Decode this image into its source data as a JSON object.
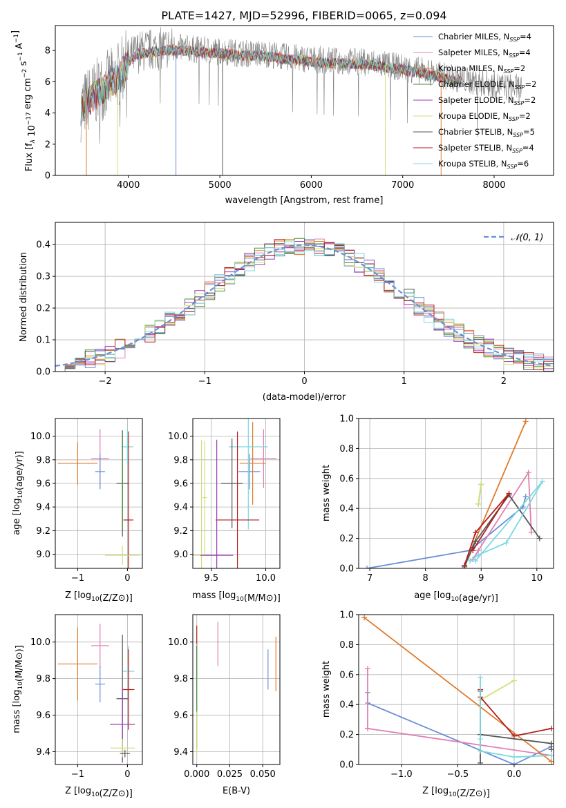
{
  "figure": {
    "title": "PLATE=1427, MJD=52996, FIBERID=0065, z=0.094"
  },
  "colors": {
    "chabrier_miles": "#6a8ed8",
    "salpeter_miles": "#e07fb0",
    "kroupa_miles": "#e07a2a",
    "chabrier_elodie": "#4a8a3a",
    "salpeter_elodie": "#9a3ab8",
    "kroupa_elodie": "#cfe07a",
    "chabrier_stelib": "#555555",
    "salpeter_stelib": "#b01e1e",
    "kroupa_stelib": "#7ad8e0",
    "gaussian": "#6a8ed8",
    "grid": "#b0b0b0"
  },
  "legend_entries": [
    {
      "text": "Chabrier MILES, N",
      "sub": "SSP",
      "suffix": "=4",
      "color_key": "chabrier_miles"
    },
    {
      "text": "Salpeter MILES, N",
      "sub": "SSP",
      "suffix": "=4",
      "color_key": "salpeter_miles"
    },
    {
      "text": "Kroupa MILES, N",
      "sub": "SSP",
      "suffix": "=2",
      "color_key": "kroupa_miles"
    },
    {
      "text": "Chabrier ELODIE, N",
      "sub": "SSP",
      "suffix": "=2",
      "color_key": "chabrier_elodie"
    },
    {
      "text": "Salpeter ELODIE, N",
      "sub": "SSP",
      "suffix": "=2",
      "color_key": "salpeter_elodie"
    },
    {
      "text": "Kroupa ELODIE, N",
      "sub": "SSP",
      "suffix": "=2",
      "color_key": "kroupa_elodie"
    },
    {
      "text": "Chabrier STELIB, N",
      "sub": "SSP",
      "suffix": "=5",
      "color_key": "chabrier_stelib"
    },
    {
      "text": "Salpeter STELIB, N",
      "sub": "SSP",
      "suffix": "=4",
      "color_key": "salpeter_stelib"
    },
    {
      "text": "Kroupa STELIB, N",
      "sub": "SSP",
      "suffix": "=6",
      "color_key": "kroupa_stelib"
    }
  ],
  "chart_data": [
    {
      "id": "spectrum",
      "type": "line",
      "xlabel": "wavelength [Angstrom, rest frame]",
      "ylabel": "Flux [f_λ 10^-17 erg cm^-2 s^-1 A^-1]",
      "xlim": [
        3200,
        8650
      ],
      "ylim": [
        0,
        9.6
      ],
      "xticks": [
        4000,
        5000,
        6000,
        7000,
        8000
      ],
      "yticks": [
        0,
        2,
        4,
        6,
        8
      ],
      "data_x": [
        3480,
        3550,
        3700,
        3850,
        3950,
        4000,
        4100,
        4300,
        4500,
        4700,
        4900,
        5100,
        5300,
        5500,
        5700,
        5900,
        6100,
        6300,
        6500,
        6700,
        6900,
        7100,
        7300,
        7500,
        7700,
        7900,
        8100,
        8300
      ],
      "data_y": [
        4.3,
        4.8,
        5.6,
        6.2,
        6.9,
        7.4,
        7.9,
        8.1,
        8.2,
        8.1,
        8.0,
        7.9,
        7.8,
        7.8,
        7.6,
        7.5,
        7.4,
        7.3,
        7.3,
        7.2,
        7.0,
        6.8,
        6.6,
        6.3,
        6.1,
        5.9,
        5.7,
        5.6
      ],
      "model_end_x": 7650,
      "grid": false,
      "legend": "upper right"
    },
    {
      "id": "residuals",
      "type": "histogram",
      "xlabel": "(data-model)/error",
      "ylabel": "Normed distribution",
      "xlim": [
        -2.5,
        2.5
      ],
      "ylim": [
        0,
        0.47
      ],
      "xticks": [
        -2,
        -1,
        0,
        1,
        2
      ],
      "yticks": [
        0.0,
        0.1,
        0.2,
        0.3,
        0.4
      ],
      "bin_width": 0.1,
      "reference_label": "N(0,1)",
      "grid": true,
      "legend": "upper right"
    },
    {
      "id": "age-vs-Z",
      "type": "errorbar",
      "xlabel": "Z [log10(Z/Z⊙)]",
      "ylabel": "age [log10(age/yr)]",
      "xlim": [
        -1.45,
        0.3
      ],
      "ylim": [
        8.88,
        10.15
      ],
      "xticks": [
        -1,
        0
      ],
      "yticks": [
        9.0,
        9.2,
        9.4,
        9.6,
        9.8,
        10.0
      ],
      "points": [
        {
          "color_key": "kroupa_miles",
          "x": -1.0,
          "xerr": 0.4,
          "y": 9.77,
          "yerr": 0.18
        },
        {
          "color_key": "salpeter_miles",
          "x": -0.55,
          "xerr": 0.18,
          "y": 9.81,
          "yerr": 0.25
        },
        {
          "color_key": "chabrier_miles",
          "x": -0.55,
          "xerr": 0.1,
          "y": 9.7,
          "yerr": 0.15
        },
        {
          "color_key": "kroupa_stelib",
          "x": 0.0,
          "xerr": 0.12,
          "y": 9.91,
          "yerr": 0.15
        },
        {
          "color_key": "chabrier_stelib",
          "x": -0.1,
          "xerr": 0.12,
          "y": 9.6,
          "yerr": 0.45
        },
        {
          "color_key": "salpeter_stelib",
          "x": 0.02,
          "xerr": 0.1,
          "y": 9.29,
          "yerr": 0.75
        },
        {
          "color_key": "kroupa_elodie",
          "x": -0.1,
          "xerr": 0.35,
          "y": 8.99,
          "yerr": 0.08
        },
        {
          "color_key": "chabrier_elodie",
          "x": -0.1,
          "xerr": 0.05,
          "y": 9.6,
          "yerr": 0.4
        }
      ],
      "grid": true
    },
    {
      "id": "age-vs-mass",
      "type": "errorbar",
      "xlabel": "mass [log10(M/M⊙)]",
      "ylabel": "",
      "xlim": [
        9.33,
        10.13
      ],
      "ylim": [
        8.88,
        10.15
      ],
      "xticks": [
        9.5,
        10.0
      ],
      "yticks": [
        9.0,
        9.2,
        9.4,
        9.6,
        9.8,
        10.0
      ],
      "points": [
        {
          "color_key": "salpeter_miles",
          "x": 9.98,
          "xerr": 0.12,
          "y": 9.81,
          "yerr": 0.25
        },
        {
          "color_key": "kroupa_miles",
          "x": 9.88,
          "xerr": 0.12,
          "y": 9.77,
          "yerr": 0.35
        },
        {
          "color_key": "chabrier_miles",
          "x": 9.85,
          "xerr": 0.1,
          "y": 9.7,
          "yerr": 0.15
        },
        {
          "color_key": "kroupa_stelib",
          "x": 9.84,
          "xerr": 0.18,
          "y": 9.91,
          "yerr": 0.7
        },
        {
          "color_key": "chabrier_stelib",
          "x": 9.69,
          "xerr": 0.1,
          "y": 9.6,
          "yerr": 0.38
        },
        {
          "color_key": "salpeter_stelib",
          "x": 9.74,
          "xerr": 0.2,
          "y": 9.29,
          "yerr": 0.75
        },
        {
          "color_key": "kroupa_elodie",
          "x": 9.41,
          "xerr": 0.15,
          "y": 8.99,
          "yerr": 0.98
        },
        {
          "color_key": "salpeter_elodie",
          "x": 9.55,
          "xerr": 0.15,
          "y": 8.99,
          "yerr": 0.98
        },
        {
          "color_key": "kroupa_elodie",
          "x": 9.44,
          "xerr": 0.02,
          "y": 9.48,
          "yerr": 0.48
        }
      ],
      "grid": true
    },
    {
      "id": "weight-vs-age",
      "type": "line",
      "xlabel": "age [log10(age/yr)]",
      "ylabel": "mass weight",
      "xlim": [
        6.8,
        10.3
      ],
      "ylim": [
        0,
        1
      ],
      "xticks": [
        7,
        8,
        9,
        10
      ],
      "yticks": [
        0.0,
        0.2,
        0.4,
        0.6,
        0.8,
        1.0
      ],
      "series": [
        {
          "color_key": "chabrier_miles",
          "x": [
            6.95,
            8.8,
            9.75,
            9.8
          ],
          "y": [
            0.0,
            0.12,
            0.41,
            0.48
          ]
        },
        {
          "color_key": "salpeter_miles",
          "x": [
            8.85,
            8.95,
            9.85,
            9.9
          ],
          "y": [
            0.06,
            0.12,
            0.64,
            0.24
          ]
        },
        {
          "color_key": "kroupa_miles",
          "x": [
            8.7,
            9.8
          ],
          "y": [
            0.02,
            0.98
          ]
        },
        {
          "color_key": "chabrier_elodie",
          "x": [
            8.95,
            9.0
          ],
          "y": [
            0.43,
            0.56
          ]
        },
        {
          "color_key": "kroupa_elodie",
          "x": [
            8.95,
            9.0
          ],
          "y": [
            0.43,
            0.56
          ]
        },
        {
          "color_key": "chabrier_stelib",
          "x": [
            8.7,
            8.85,
            8.9,
            9.5,
            10.05
          ],
          "y": [
            0.01,
            0.14,
            0.18,
            0.49,
            0.2
          ]
        },
        {
          "color_key": "salpeter_stelib",
          "x": [
            8.7,
            8.9,
            9.5,
            8.85
          ],
          "y": [
            0.02,
            0.24,
            0.5,
            0.12
          ]
        },
        {
          "color_key": "kroupa_stelib",
          "x": [
            8.8,
            8.95,
            9.45,
            10.1,
            8.9
          ],
          "y": [
            0.05,
            0.09,
            0.17,
            0.58,
            0.05
          ]
        }
      ],
      "grid": true
    },
    {
      "id": "mass-vs-Z",
      "type": "errorbar",
      "xlabel": "Z [log10(Z/Z⊙)]",
      "ylabel": "mass [log10(M/M⊙)]",
      "xlim": [
        -1.45,
        0.3
      ],
      "ylim": [
        9.33,
        10.15
      ],
      "xticks": [
        -1,
        0
      ],
      "yticks": [
        9.4,
        9.6,
        9.8,
        10.0
      ],
      "points": [
        {
          "color_key": "kroupa_miles",
          "x": -1.0,
          "xerr": 0.4,
          "y": 9.88,
          "yerr": 0.2
        },
        {
          "color_key": "salpeter_miles",
          "x": -0.55,
          "xerr": 0.18,
          "y": 9.98,
          "yerr": 0.12
        },
        {
          "color_key": "chabrier_miles",
          "x": -0.55,
          "xerr": 0.1,
          "y": 9.77,
          "yerr": 0.1
        },
        {
          "color_key": "kroupa_stelib",
          "x": 0.02,
          "xerr": 0.12,
          "y": 9.84,
          "yerr": 0.14
        },
        {
          "color_key": "salpeter_stelib",
          "x": 0.02,
          "xerr": 0.12,
          "y": 9.74,
          "yerr": 0.22
        },
        {
          "color_key": "chabrier_stelib",
          "x": -0.1,
          "xerr": 0.12,
          "y": 9.69,
          "yerr": 0.35
        },
        {
          "color_key": "salpeter_elodie",
          "x": -0.1,
          "xerr": 0.25,
          "y": 9.55,
          "yerr": 0.2
        },
        {
          "color_key": "kroupa_elodie",
          "x": -0.1,
          "xerr": 0.25,
          "y": 9.42,
          "yerr": 0.05
        },
        {
          "color_key": "chabrier_stelib",
          "x": -0.05,
          "xerr": 0.1,
          "y": 9.39,
          "yerr": 0.02
        }
      ],
      "grid": true
    },
    {
      "id": "mass-vs-ebv",
      "type": "errorbar",
      "xlabel": "E(B-V)",
      "ylabel": "",
      "xlim": [
        -0.003,
        0.063
      ],
      "ylim": [
        9.33,
        10.15
      ],
      "xticks": [
        0.0,
        0.025,
        0.05
      ],
      "yticks": [
        9.4,
        9.6,
        9.8,
        10.0
      ],
      "points": [
        {
          "color_key": "kroupa_miles",
          "x": 0.06,
          "xerr": 0,
          "y": 9.88,
          "yerr": 0.15
        },
        {
          "color_key": "chabrier_miles",
          "x": 0.054,
          "xerr": 0,
          "y": 9.85,
          "yerr": 0.11
        },
        {
          "color_key": "salpeter_miles",
          "x": 0.016,
          "xerr": 0,
          "y": 9.99,
          "yerr": 0.12
        },
        {
          "color_key": "salpeter_stelib",
          "x": 0.0,
          "xerr": 0,
          "y": 9.95,
          "yerr": 0.14
        },
        {
          "color_key": "kroupa_stelib",
          "x": 0.0,
          "xerr": 0,
          "y": 9.79,
          "yerr": 0.2
        },
        {
          "color_key": "chabrier_elodie",
          "x": 0.0,
          "xerr": 0,
          "y": 9.7,
          "yerr": 0.28
        },
        {
          "color_key": "kroupa_elodie",
          "x": 0.0,
          "xerr": 0,
          "y": 9.5,
          "yerr": 0.12
        }
      ],
      "grid": true
    },
    {
      "id": "weight-vs-Z",
      "type": "line",
      "xlabel": "Z [log10(Z/Z⊙)]",
      "ylabel": "mass weight",
      "xlim": [
        -1.38,
        0.35
      ],
      "ylim": [
        0,
        1
      ],
      "xticks": [
        -1.0,
        -0.5,
        0.0
      ],
      "yticks": [
        0.0,
        0.2,
        0.4,
        0.6,
        0.8,
        1.0
      ],
      "series": [
        {
          "color_key": "chabrier_miles",
          "x": [
            -1.3,
            -1.3,
            0.0,
            0.33
          ],
          "y": [
            0.48,
            0.41,
            0.0,
            0.12
          ]
        },
        {
          "color_key": "salpeter_miles",
          "x": [
            -1.3,
            -1.3,
            -1.3,
            0.33
          ],
          "y": [
            0.64,
            0.24,
            0.24,
            0.06
          ]
        },
        {
          "color_key": "kroupa_miles",
          "x": [
            -1.33,
            0.33
          ],
          "y": [
            0.98,
            0.02
          ]
        },
        {
          "color_key": "kroupa_elodie",
          "x": [
            -0.3,
            0.0
          ],
          "y": [
            0.43,
            0.56
          ]
        },
        {
          "color_key": "chabrier_stelib",
          "x": [
            -0.3,
            -0.3,
            -0.3,
            0.33,
            0.33
          ],
          "y": [
            0.01,
            0.49,
            0.2,
            0.14,
            0.1
          ]
        },
        {
          "color_key": "salpeter_stelib",
          "x": [
            -0.3,
            -0.3,
            0.0,
            0.33
          ],
          "y": [
            0.5,
            0.45,
            0.19,
            0.24
          ]
        },
        {
          "color_key": "kroupa_stelib",
          "x": [
            -0.3,
            -0.3,
            -0.3,
            0.0,
            0.33
          ],
          "y": [
            0.58,
            0.17,
            0.09,
            0.05,
            0.06
          ]
        }
      ],
      "grid": true
    }
  ]
}
